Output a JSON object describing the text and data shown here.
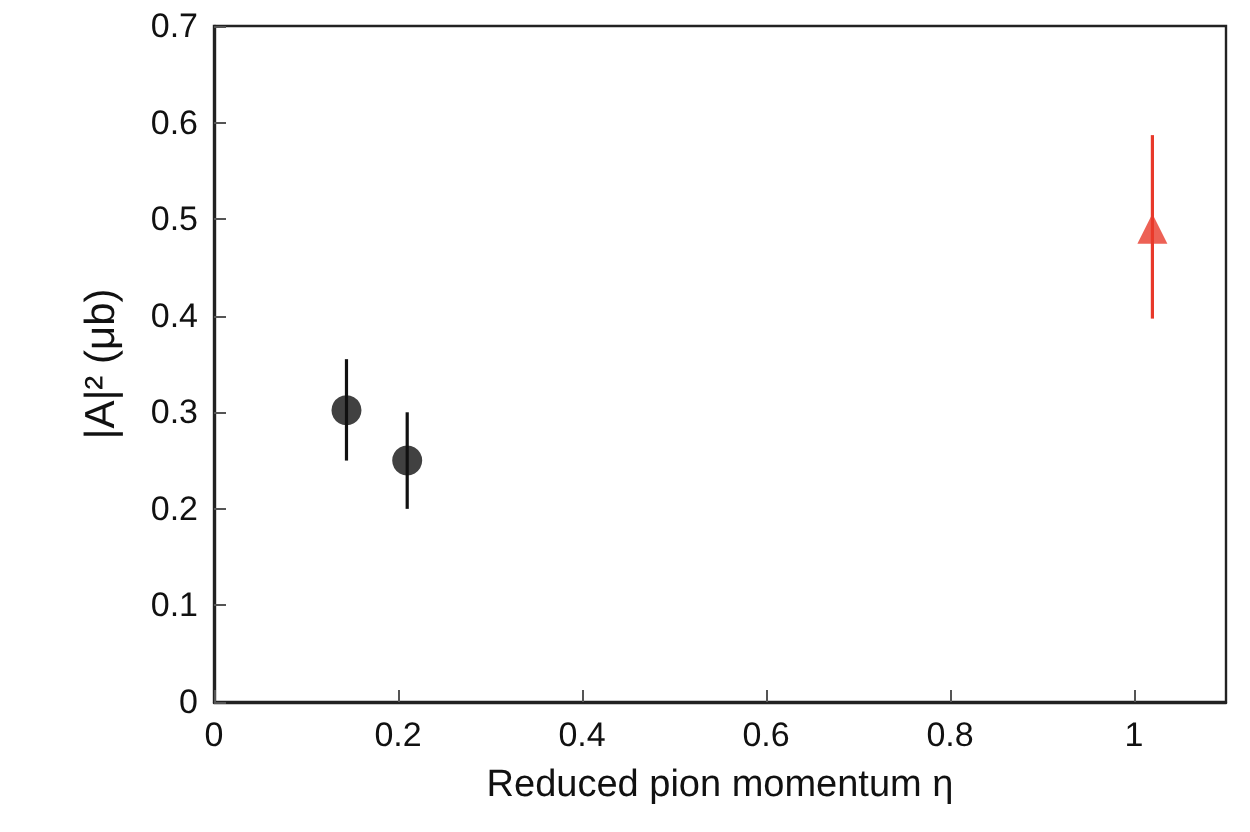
{
  "chart_data": {
    "type": "scatter",
    "xlabel": "Reduced pion momentum η",
    "ylabel": "|A|² (μb)",
    "xlim": [
      0,
      1.1
    ],
    "xticks": [
      0,
      0.2,
      0.4,
      0.6,
      0.8,
      1
    ],
    "ylim": [
      0,
      0.7
    ],
    "yticks": [
      0,
      0.1,
      0.2,
      0.3,
      0.4,
      0.5,
      0.6,
      0.7
    ],
    "grid": false,
    "series": [
      {
        "color": "#111111",
        "marker": "circle",
        "x": [
          0.144,
          0.21
        ],
        "values": [
          0.302,
          0.25
        ],
        "errors": [
          [
            0.25,
            0.355
          ],
          [
            0.2,
            0.3
          ]
        ]
      },
      {
        "color": "#e8392a",
        "marker": "triangle",
        "x": [
          1.02
        ],
        "values": [
          0.49
        ],
        "errors": [
          [
            0.397,
            0.587
          ]
        ]
      }
    ]
  }
}
